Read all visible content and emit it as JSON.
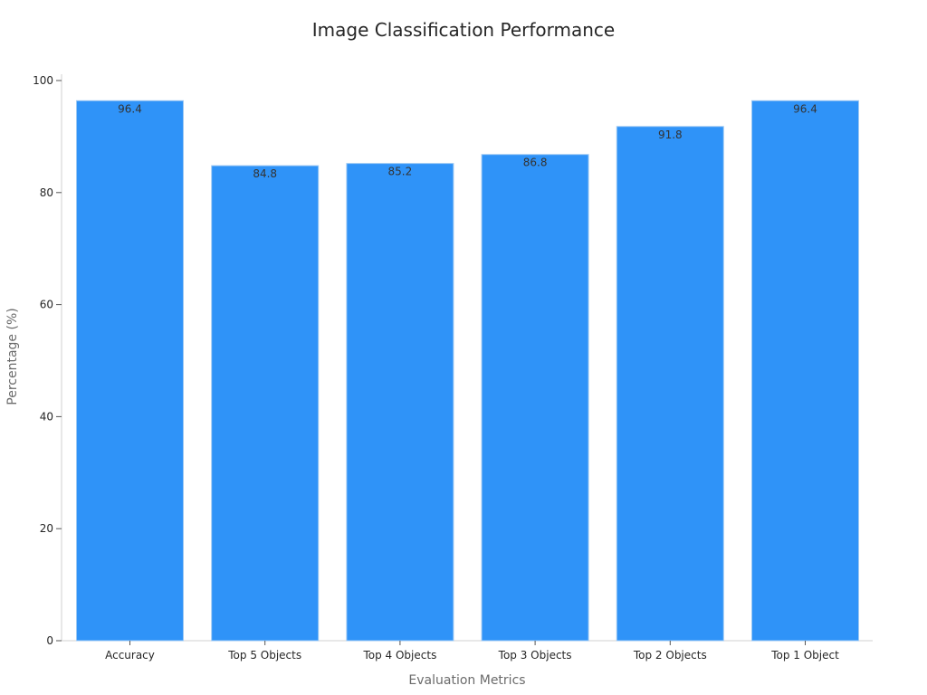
{
  "chart_data": {
    "type": "bar",
    "title": "Image Classification Performance",
    "xlabel": "Evaluation Metrics",
    "ylabel": "Percentage (%)",
    "categories": [
      "Accuracy",
      "Top 5 Objects",
      "Top 4 Objects",
      "Top 3 Objects",
      "Top 2 Objects",
      "Top 1 Object"
    ],
    "values": [
      96.4,
      84.8,
      85.2,
      86.8,
      91.8,
      96.4
    ],
    "value_labels": [
      "96.4",
      "84.8",
      "85.2",
      "86.8",
      "91.8",
      "96.4"
    ],
    "ylim": [
      0,
      100
    ],
    "yticks": [
      0,
      20,
      40,
      60,
      80,
      100
    ],
    "ytick_labels": [
      "0",
      "20",
      "40",
      "60",
      "80",
      "100"
    ],
    "grid": false,
    "legend": "none",
    "colors": {
      "bar": "#2f93f8",
      "bar_edge": "#9cc8f3"
    }
  }
}
